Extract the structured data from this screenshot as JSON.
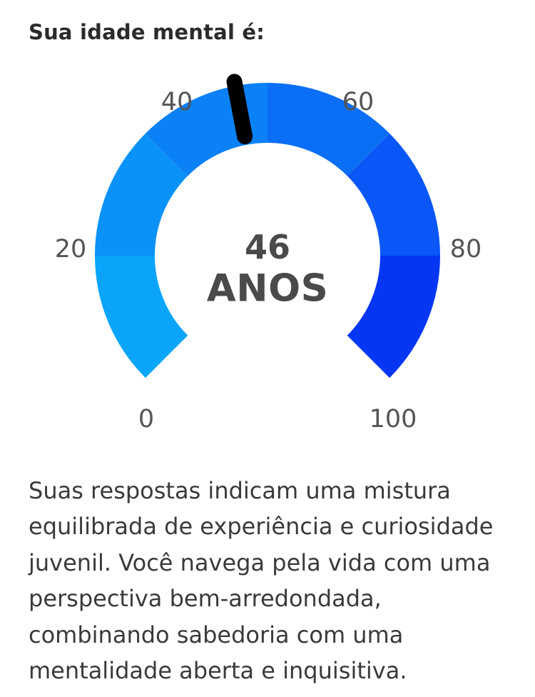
{
  "result": {
    "title": "Sua idade mental é:",
    "description": "Suas respostas indicam uma mistura equilibrada de experiência e curiosidade juvenil. Você navega pela vida com uma perspectiva bem-arredondada, combinando sabedoria com uma mentalidade aberta e inquisitiva."
  },
  "gauge": {
    "value": 46,
    "value_label": "46",
    "unit_label": "ANOS",
    "min": 0,
    "max": 100,
    "tick_labels": [
      "0",
      "20",
      "40",
      "60",
      "80",
      "100"
    ],
    "segment_colors": [
      "#0aa5fb",
      "#0a92f8",
      "#0a81f6",
      "#0a6ef6",
      "#0a56f6",
      "#0436f4"
    ],
    "needle_color": "#000000"
  }
}
